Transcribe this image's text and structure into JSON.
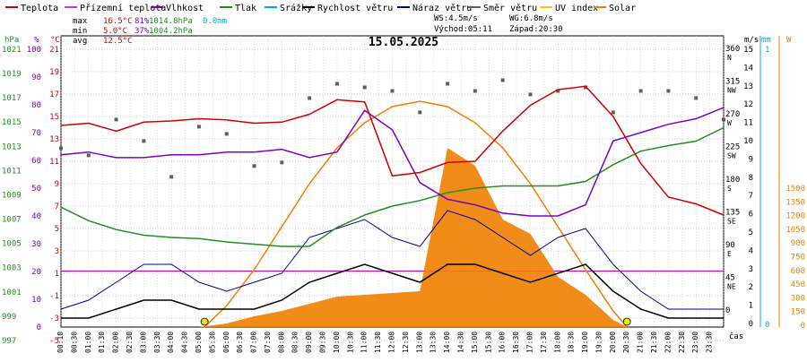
{
  "chart_data": {
    "type": "line",
    "title": "15.05.2025",
    "x_axis_label": "čas",
    "x_ticks": [
      "00:10",
      "00:30",
      "01:00",
      "01:30",
      "02:00",
      "02:30",
      "03:00",
      "03:30",
      "04:00",
      "04:30",
      "05:00",
      "05:30",
      "06:00",
      "06:30",
      "07:00",
      "07:30",
      "08:00",
      "08:30",
      "09:00",
      "09:30",
      "10:00",
      "10:30",
      "11:00",
      "11:30",
      "12:00",
      "12:30",
      "13:00",
      "13:30",
      "14:00",
      "14:30",
      "15:00",
      "15:30",
      "16:00",
      "16:30",
      "17:00",
      "17:30",
      "18:00",
      "18:30",
      "19:00",
      "19:30",
      "20:00",
      "20:30",
      "21:00",
      "21:30",
      "22:00",
      "22:30",
      "23:00",
      "23:30"
    ],
    "legend": [
      {
        "label": "Teplota",
        "color": "#d00000"
      },
      {
        "label": "Přízemní teplota",
        "color": "#c040c0"
      },
      {
        "label": "Vlhkost",
        "color": "#8000c0"
      },
      {
        "label": "Tlak",
        "color": "#209020"
      },
      {
        "label": "Srážky",
        "color": "#00b0d0"
      },
      {
        "label": "Rychlost větru",
        "color": "#000000"
      },
      {
        "label": "Náraz větru",
        "color": "#00008a"
      },
      {
        "label": "Směr větru",
        "color": "#606060"
      },
      {
        "label": "UV index",
        "color": "#e0d000"
      },
      {
        "label": "Solar",
        "color": "#f08000"
      }
    ],
    "stats": {
      "max": [
        "max",
        "16.5°C",
        "81%",
        "1014.8hPa",
        "0.0mm"
      ],
      "min": [
        "min",
        "5.0°C",
        "37%",
        "1004.2hPa"
      ],
      "avg": [
        "avg",
        "12.5°C"
      ],
      "wind": [
        "WS:4.5m/s",
        "WG:6.8m/s"
      ],
      "sun": [
        "Východ:05:11",
        "Západ:20:30"
      ]
    },
    "axes": {
      "hpa": {
        "label": "hPa",
        "color": "#209020",
        "ticks": [
          "1021",
          "1019",
          "1017",
          "1015",
          "1013",
          "1011",
          "1009",
          "1007",
          "1005",
          "1003",
          "1001",
          "999",
          "997"
        ]
      },
      "pct": {
        "label": "%",
        "color": "#8000c0",
        "ticks": [
          "100",
          "90",
          "80",
          "70",
          "60",
          "50",
          "40",
          "30",
          "20",
          "10",
          "0"
        ]
      },
      "temp": {
        "label": "°C",
        "color": "#d00000",
        "ticks": [
          "21",
          "19",
          "17",
          "15",
          "13",
          "11",
          "9",
          "7",
          "5",
          "3",
          "1",
          "-1",
          "-3",
          "-5"
        ]
      },
      "dir": {
        "ticks": [
          [
            "360",
            "N"
          ],
          [
            "315",
            "NW"
          ],
          [
            "270",
            "W"
          ],
          [
            "225",
            "SW"
          ],
          [
            "180",
            "S"
          ],
          [
            "135",
            "SE"
          ],
          [
            "90",
            "E"
          ],
          [
            "45",
            "NE"
          ],
          [
            "0",
            ""
          ]
        ]
      },
      "ms": {
        "label": "m/s",
        "ticks": [
          "15",
          "14",
          "13",
          "12",
          "11",
          "10",
          "9",
          "8",
          "7",
          "6",
          "5",
          "4",
          "3",
          "2",
          "1",
          "0"
        ]
      },
      "mm": {
        "label": "mm",
        "color": "#00b0d0",
        "ticks": [
          "1",
          "0"
        ]
      },
      "watt": {
        "label": "W",
        "color": "#f08000",
        "ticks": [
          "1500",
          "1350",
          "1200",
          "1050",
          "900",
          "750",
          "600",
          "450",
          "300",
          "150",
          "0"
        ]
      }
    },
    "series": [
      {
        "name": "Teplota",
        "unit": "°C",
        "x": [
          0,
          1,
          2,
          3,
          4,
          5,
          6,
          7,
          8,
          9,
          10,
          11,
          12,
          13,
          14,
          15,
          16,
          17,
          18,
          19,
          20,
          21,
          22,
          23,
          24
        ],
        "values": [
          13.0,
          13.2,
          12.5,
          13.3,
          13.4,
          13.6,
          13.5,
          13.2,
          13.3,
          14.0,
          15.3,
          15.1,
          8.5,
          8.8,
          9.7,
          9.8,
          12.5,
          14.8,
          16.2,
          16.5,
          13.8,
          9.6,
          6.6,
          6.0,
          5.0
        ]
      },
      {
        "name": "Vlhkost",
        "unit": "%",
        "x": [
          0,
          1,
          2,
          3,
          4,
          5,
          6,
          7,
          8,
          9,
          10,
          11,
          12,
          13,
          14,
          15,
          16,
          17,
          18,
          19,
          20,
          21,
          22,
          23,
          24
        ],
        "values": [
          62,
          63,
          61,
          61,
          62,
          62,
          63,
          63,
          64,
          61,
          63,
          78,
          71,
          52,
          46,
          44,
          41,
          40,
          40,
          44,
          67,
          70,
          73,
          75,
          79
        ]
      },
      {
        "name": "Tlak",
        "unit": "hPa",
        "x": [
          0,
          1,
          2,
          3,
          4,
          5,
          6,
          7,
          8,
          9,
          10,
          11,
          12,
          13,
          14,
          15,
          16,
          17,
          18,
          19,
          20,
          21,
          22,
          23,
          24
        ],
        "values": [
          1007.7,
          1006.5,
          1005.7,
          1005.2,
          1005.0,
          1004.9,
          1004.6,
          1004.4,
          1004.2,
          1004.2,
          1005.9,
          1007.0,
          1007.8,
          1008.3,
          1009.0,
          1009.4,
          1009.6,
          1009.6,
          1009.6,
          1010.0,
          1011.5,
          1012.7,
          1013.2,
          1013.6,
          1014.8
        ]
      },
      {
        "name": "Rychlost větru",
        "unit": "m/s",
        "x": [
          0,
          1,
          2,
          3,
          4,
          5,
          6,
          7,
          8,
          9,
          10,
          11,
          12,
          13,
          14,
          15,
          16,
          17,
          18,
          19,
          20,
          21,
          22,
          23,
          24
        ],
        "values": [
          0.5,
          0.5,
          1,
          1.5,
          1.5,
          1,
          1,
          1,
          1.5,
          2.5,
          3,
          3.5,
          3,
          2.5,
          3.5,
          3.5,
          3,
          2.5,
          3,
          3.5,
          2,
          1,
          0.5,
          0.5,
          0.5
        ]
      },
      {
        "name": "Náraz větru",
        "unit": "m/s",
        "x": [
          0,
          1,
          2,
          3,
          4,
          5,
          6,
          7,
          8,
          9,
          10,
          11,
          12,
          13,
          14,
          15,
          16,
          17,
          18,
          19,
          20,
          21,
          22,
          23,
          24
        ],
        "values": [
          1,
          1.5,
          2.5,
          3.5,
          3.5,
          2.5,
          2,
          2.5,
          3,
          5,
          5.5,
          6,
          5,
          4.5,
          6.5,
          6,
          5,
          4,
          5,
          5.5,
          3.5,
          2,
          1,
          1,
          1
        ]
      },
      {
        "name": "Solar",
        "unit": "W",
        "x": [
          5,
          6,
          7,
          8,
          9,
          10,
          11,
          12,
          13,
          14,
          15,
          16,
          17,
          18,
          19,
          20,
          20.5
        ],
        "values": [
          0,
          20,
          60,
          90,
          130,
          170,
          180,
          190,
          200,
          1000,
          900,
          600,
          520,
          280,
          180,
          40,
          0
        ]
      },
      {
        "name": "Solar (theoretical)",
        "unit": "W",
        "x": [
          5.2,
          6,
          7,
          8,
          9,
          10,
          11,
          12,
          13,
          14,
          15,
          16,
          17,
          18,
          19,
          20,
          20.5
        ],
        "values": [
          0,
          120,
          320,
          560,
          800,
          1000,
          1140,
          1230,
          1260,
          1230,
          1140,
          1000,
          800,
          560,
          320,
          90,
          0
        ]
      },
      {
        "name": "Směr větru",
        "unit": "°",
        "x": [
          0,
          1,
          2,
          3,
          4,
          5,
          6,
          7,
          8,
          9,
          10,
          11,
          12,
          13,
          14,
          15,
          16,
          17,
          18,
          19,
          20,
          21,
          22,
          23,
          24
        ],
        "values": [
          250,
          240,
          290,
          260,
          210,
          280,
          270,
          225,
          230,
          320,
          340,
          335,
          330,
          300,
          340,
          330,
          345,
          325,
          330,
          335,
          300,
          330,
          330,
          320,
          290
        ]
      }
    ],
    "markers": [
      {
        "name": "sunrise",
        "x": 5.2
      },
      {
        "name": "sunset",
        "x": 20.5
      }
    ],
    "grid": true,
    "legend_placement": "top"
  }
}
